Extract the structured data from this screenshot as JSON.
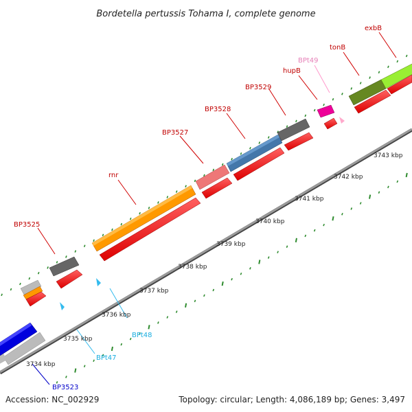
{
  "title": "Bordetella pertussis Tohama I, complete genome",
  "footer": {
    "accession": "Accession: NC_002929",
    "summary": "Topology: circular; Length: 4,086,189 bp; Genes: 3,497"
  },
  "ticks": [
    {
      "label": "3734 kbp",
      "kbp": 3734
    },
    {
      "label": "3735 kbp",
      "kbp": 3735
    },
    {
      "label": "3736 kbp",
      "kbp": 3736
    },
    {
      "label": "3737 kbp",
      "kbp": 3737
    },
    {
      "label": "3738 kbp",
      "kbp": 3738
    },
    {
      "label": "3739 kbp",
      "kbp": 3739
    },
    {
      "label": "3740 kbp",
      "kbp": 3740
    },
    {
      "label": "3741 kbp",
      "kbp": 3741
    },
    {
      "label": "3742 kbp",
      "kbp": 3742
    },
    {
      "label": "3743 kbp",
      "kbp": 3743
    }
  ],
  "genes": [
    {
      "label": "BP3523",
      "kind": "gene",
      "color": "#0000dd"
    },
    {
      "label": "BPt47",
      "kind": "trna",
      "color": "#33bbee"
    },
    {
      "label": "BPt48",
      "kind": "trna",
      "color": "#33bbee"
    },
    {
      "label": "BP3525",
      "kind": "gene",
      "color": "#666666"
    },
    {
      "label": "rnr",
      "kind": "gene",
      "color": "#ff9900"
    },
    {
      "label": "BP3527",
      "kind": "gene",
      "color": "#ee7777"
    },
    {
      "label": "BP3528",
      "kind": "gene",
      "color": "#4477aa"
    },
    {
      "label": "BP3529",
      "kind": "gene",
      "color": "#666666"
    },
    {
      "label": "hupB",
      "kind": "gene",
      "color": "#ee0099"
    },
    {
      "label": "BPt49",
      "kind": "trna",
      "color": "#ff99cc"
    },
    {
      "label": "tonB",
      "kind": "gene",
      "color": "#668822"
    },
    {
      "label": "exbB",
      "kind": "gene",
      "color": "#99ee33"
    }
  ],
  "colors": {
    "cds": "#ff0000",
    "backbone": "#888888",
    "tick_dots": "#2e8b2e"
  }
}
